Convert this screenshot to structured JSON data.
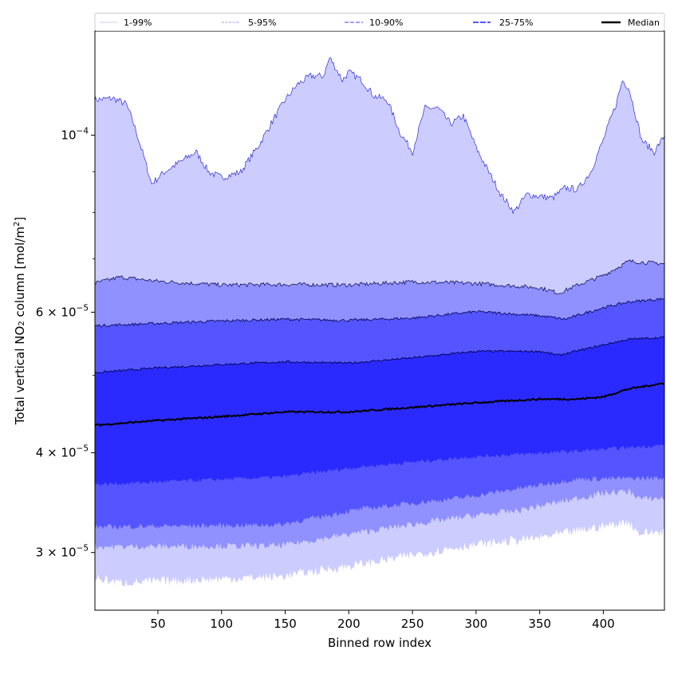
{
  "chart_data": {
    "type": "area",
    "title": "",
    "xlabel": "Binned row index",
    "ylabel_main": "Total vertical NO",
    "ylabel_sub": "2",
    "ylabel_rest": " column [mol/m",
    "ylabel_sup": "2",
    "ylabel_end": "]",
    "yscale": "log",
    "xlim": [
      0.5,
      448
    ],
    "ylim": [
      2.54e-05,
      0.000135
    ],
    "legend_position": "top (outside, expanded)",
    "legend": [
      "1-99%",
      "5-95%",
      "10-90%",
      "25-75%",
      "Median"
    ],
    "colors": {
      "band_1_99": "#ccccff",
      "band_5_95": "#9090ff",
      "band_10_90": "#5555ff",
      "band_25_75": "#2a2aff",
      "median": "#000000",
      "p99_line": "#1010cc",
      "inner_lines": "#000050",
      "legend_1_99": "#ccccff",
      "legend_5_95": "#9999ff",
      "legend_10_90": "#8080ff",
      "legend_25_75": "#5555ff"
    },
    "xticks": [
      {
        "value": 50,
        "label": "50"
      },
      {
        "value": 100,
        "label": "100"
      },
      {
        "value": 150,
        "label": "150"
      },
      {
        "value": 200,
        "label": "200"
      },
      {
        "value": 250,
        "label": "250"
      },
      {
        "value": 300,
        "label": "300"
      },
      {
        "value": 350,
        "label": "350"
      },
      {
        "value": 400,
        "label": "400"
      }
    ],
    "yticks": [
      {
        "value": 0.0001,
        "mant": "",
        "base": "10",
        "exp": "−4"
      },
      {
        "value": 6e-05,
        "mant": "6 × ",
        "base": "10",
        "exp": "−5"
      },
      {
        "value": 4e-05,
        "mant": "4 × ",
        "base": "10",
        "exp": "−5"
      },
      {
        "value": 3e-05,
        "mant": "3 × ",
        "base": "10",
        "exp": "−5"
      }
    ],
    "yminor_ticks": [
      5e-05,
      7e-05,
      8e-05,
      9e-05
    ],
    "value_unit": "1e-5 mol/m2",
    "series": [
      {
        "name": "p99",
        "x": [
          0,
          15,
          25,
          30,
          45,
          55,
          70,
          80,
          90,
          100,
          115,
          130,
          150,
          160,
          170,
          180,
          185,
          195,
          200,
          210,
          220,
          230,
          240,
          250,
          260,
          270,
          280,
          290,
          300,
          310,
          320,
          330,
          340,
          360,
          370,
          380,
          390,
          400,
          410,
          415,
          420,
          430,
          440,
          448
        ],
        "values": [
          11.07,
          11.12,
          10.94,
          10.44,
          8.69,
          8.99,
          9.31,
          9.53,
          8.99,
          8.85,
          8.99,
          9.75,
          11.07,
          11.59,
          11.86,
          11.86,
          12.5,
          11.72,
          11.99,
          11.72,
          11.19,
          11.07,
          10.09,
          9.53,
          10.81,
          10.81,
          10.33,
          10.57,
          9.64,
          8.99,
          8.4,
          8.02,
          8.43,
          8.34,
          8.59,
          8.55,
          8.99,
          9.86,
          10.94,
          11.72,
          11.46,
          9.86,
          9.53,
          9.98
        ]
      },
      {
        "name": "p95",
        "x": [
          0,
          20,
          50,
          100,
          150,
          200,
          250,
          300,
          350,
          365,
          380,
          400,
          420,
          448
        ],
        "values": [
          6.52,
          6.64,
          6.56,
          6.49,
          6.5,
          6.49,
          6.55,
          6.52,
          6.44,
          6.34,
          6.49,
          6.67,
          6.95,
          6.9
        ]
      },
      {
        "name": "p90",
        "x": [
          0,
          50,
          100,
          150,
          200,
          250,
          300,
          350,
          370,
          400,
          420,
          448
        ],
        "values": [
          5.77,
          5.81,
          5.85,
          5.88,
          5.86,
          5.9,
          6.01,
          5.94,
          5.88,
          6.08,
          6.18,
          6.24
        ]
      },
      {
        "name": "p75",
        "x": [
          0,
          50,
          100,
          150,
          200,
          250,
          300,
          350,
          365,
          400,
          420,
          448
        ],
        "values": [
          5.04,
          5.11,
          5.16,
          5.2,
          5.18,
          5.26,
          5.36,
          5.36,
          5.3,
          5.46,
          5.55,
          5.58
        ]
      },
      {
        "name": "Median",
        "x": [
          0,
          50,
          100,
          150,
          200,
          250,
          300,
          350,
          380,
          400,
          420,
          448
        ],
        "values": [
          4.33,
          4.39,
          4.44,
          4.5,
          4.5,
          4.56,
          4.62,
          4.67,
          4.67,
          4.7,
          4.81,
          4.89
        ]
      },
      {
        "name": "p25",
        "x": [
          0,
          146,
          209,
          293,
          380,
          448
        ],
        "values": [
          3.65,
          3.73,
          3.84,
          3.95,
          4.02,
          4.09
        ]
      },
      {
        "name": "p10",
        "x": [
          0,
          146,
          209,
          293,
          380,
          448
        ],
        "values": [
          3.23,
          3.25,
          3.4,
          3.52,
          3.71,
          3.72
        ]
      },
      {
        "name": "p5",
        "x": [
          0,
          146,
          209,
          293,
          330,
          400,
          420,
          430,
          448
        ],
        "values": [
          3.05,
          3.06,
          3.18,
          3.33,
          3.38,
          3.56,
          3.58,
          3.5,
          3.51
        ]
      },
      {
        "name": "p1",
        "x": [
          0,
          20,
          146,
          209,
          293,
          350,
          420,
          428,
          448
        ],
        "values": [
          2.79,
          2.75,
          2.8,
          2.9,
          3.06,
          3.13,
          3.28,
          3.17,
          3.19
        ]
      }
    ]
  }
}
